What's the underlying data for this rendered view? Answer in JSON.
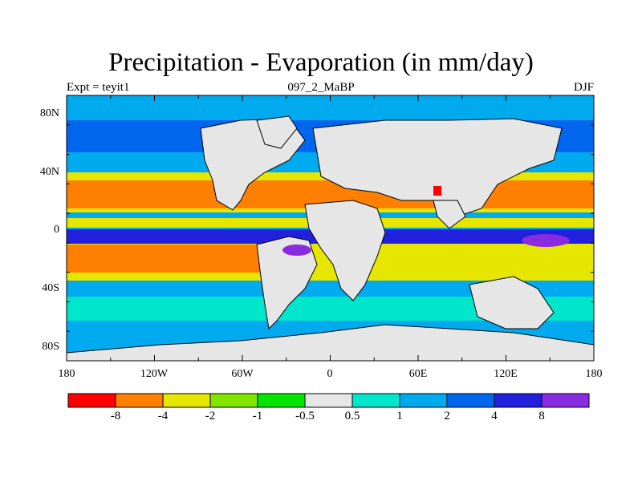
{
  "header": {
    "title": "Precipitation - Evaporation (in mm/day)",
    "left": "Expt = teyit1",
    "center": "097_2_MaBP",
    "right": "DJF"
  },
  "map": {
    "lat_labels": [
      "80N",
      "40N",
      "0",
      "40S",
      "80S"
    ],
    "lon_labels": [
      "180",
      "120W",
      "60W",
      "0",
      "60E",
      "120E",
      "180"
    ],
    "lon_range": [
      -180,
      180
    ],
    "lat_range": [
      -90,
      90
    ],
    "land_color": "#e6e6e6"
  },
  "colorbar": {
    "labels": [
      "-8",
      "-4",
      "-2",
      "-1",
      "-0.5",
      "0.5",
      "1",
      "2",
      "4",
      "8"
    ],
    "colors": [
      "#ff0000",
      "#ff8000",
      "#e6e600",
      "#80e600",
      "#00e600",
      "#e6e6e6",
      "#00e6cc",
      "#00aaee",
      "#0066ee",
      "#2020dd",
      "#8a2be2"
    ]
  }
}
